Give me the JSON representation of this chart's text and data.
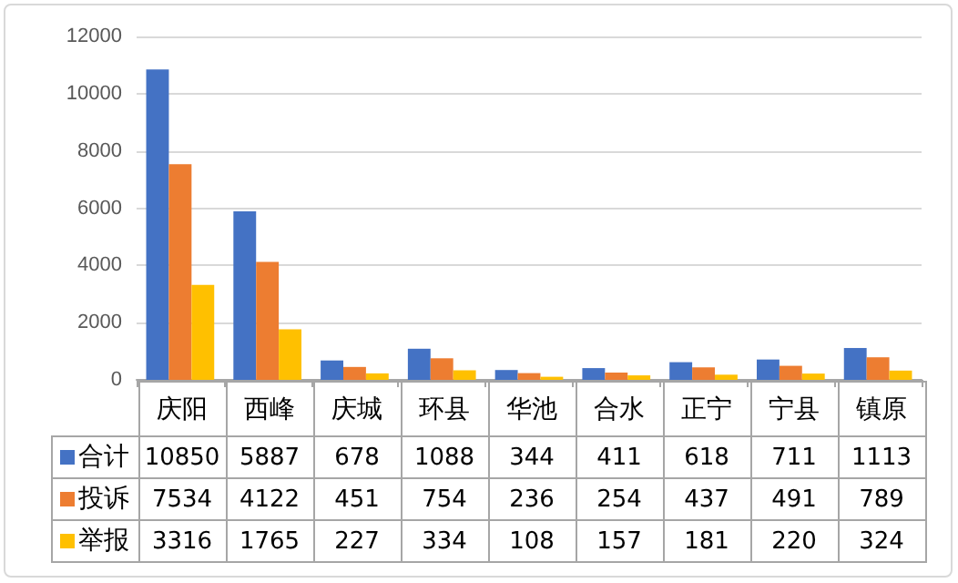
{
  "chart_data": {
    "type": "bar",
    "categories": [
      "庆阳",
      "西峰",
      "庆城",
      "环县",
      "华池",
      "合水",
      "正宁",
      "宁县",
      "镇原"
    ],
    "series": [
      {
        "name": "合计",
        "color": "#4472c4",
        "values": [
          10850,
          5887,
          678,
          1088,
          344,
          411,
          618,
          711,
          1113
        ]
      },
      {
        "name": "投诉",
        "color": "#ed7d31",
        "values": [
          7534,
          4122,
          451,
          754,
          236,
          254,
          437,
          491,
          789
        ]
      },
      {
        "name": "举报",
        "color": "#ffc000",
        "values": [
          3316,
          1765,
          227,
          334,
          108,
          157,
          181,
          220,
          324
        ]
      }
    ],
    "ylim": [
      0,
      12000
    ],
    "yticks": [
      0,
      2000,
      4000,
      6000,
      8000,
      10000,
      12000
    ],
    "grid": "y",
    "legend": "bottom",
    "data_labels": true
  }
}
